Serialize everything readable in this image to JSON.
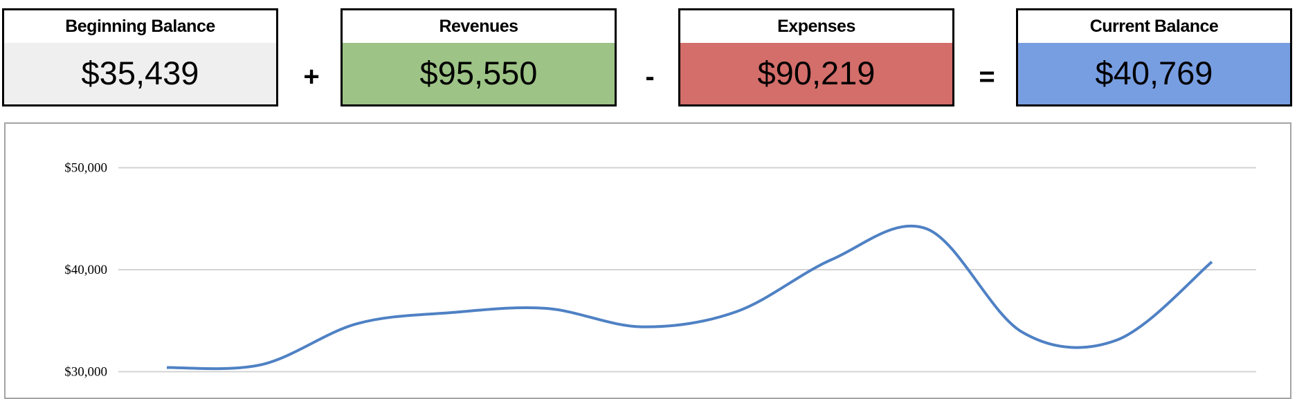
{
  "summary": {
    "cards": [
      {
        "label": "Beginning Balance",
        "value": "$35,439",
        "color": "#efefef"
      },
      {
        "label": "Revenues",
        "value": "$95,550",
        "color": "#9dc386"
      },
      {
        "label": "Expenses",
        "value": "$90,219",
        "color": "#d36e6a"
      },
      {
        "label": "Current Balance",
        "value": "$40,769",
        "color": "#789ee2"
      }
    ],
    "operators": [
      "+",
      "-",
      "="
    ]
  },
  "chart_data": {
    "type": "line",
    "smooth": true,
    "line_color": "#4f81c4",
    "grid": true,
    "y_ticks": [
      {
        "value": 30000,
        "label": "$30,000"
      },
      {
        "value": 40000,
        "label": "$40,000"
      },
      {
        "value": 50000,
        "label": "$50,000"
      }
    ],
    "series": [
      {
        "values": [
          30400,
          30700,
          34700,
          35800,
          36200,
          34400,
          35900,
          41000,
          44000,
          33900,
          33100,
          40769
        ]
      }
    ]
  }
}
